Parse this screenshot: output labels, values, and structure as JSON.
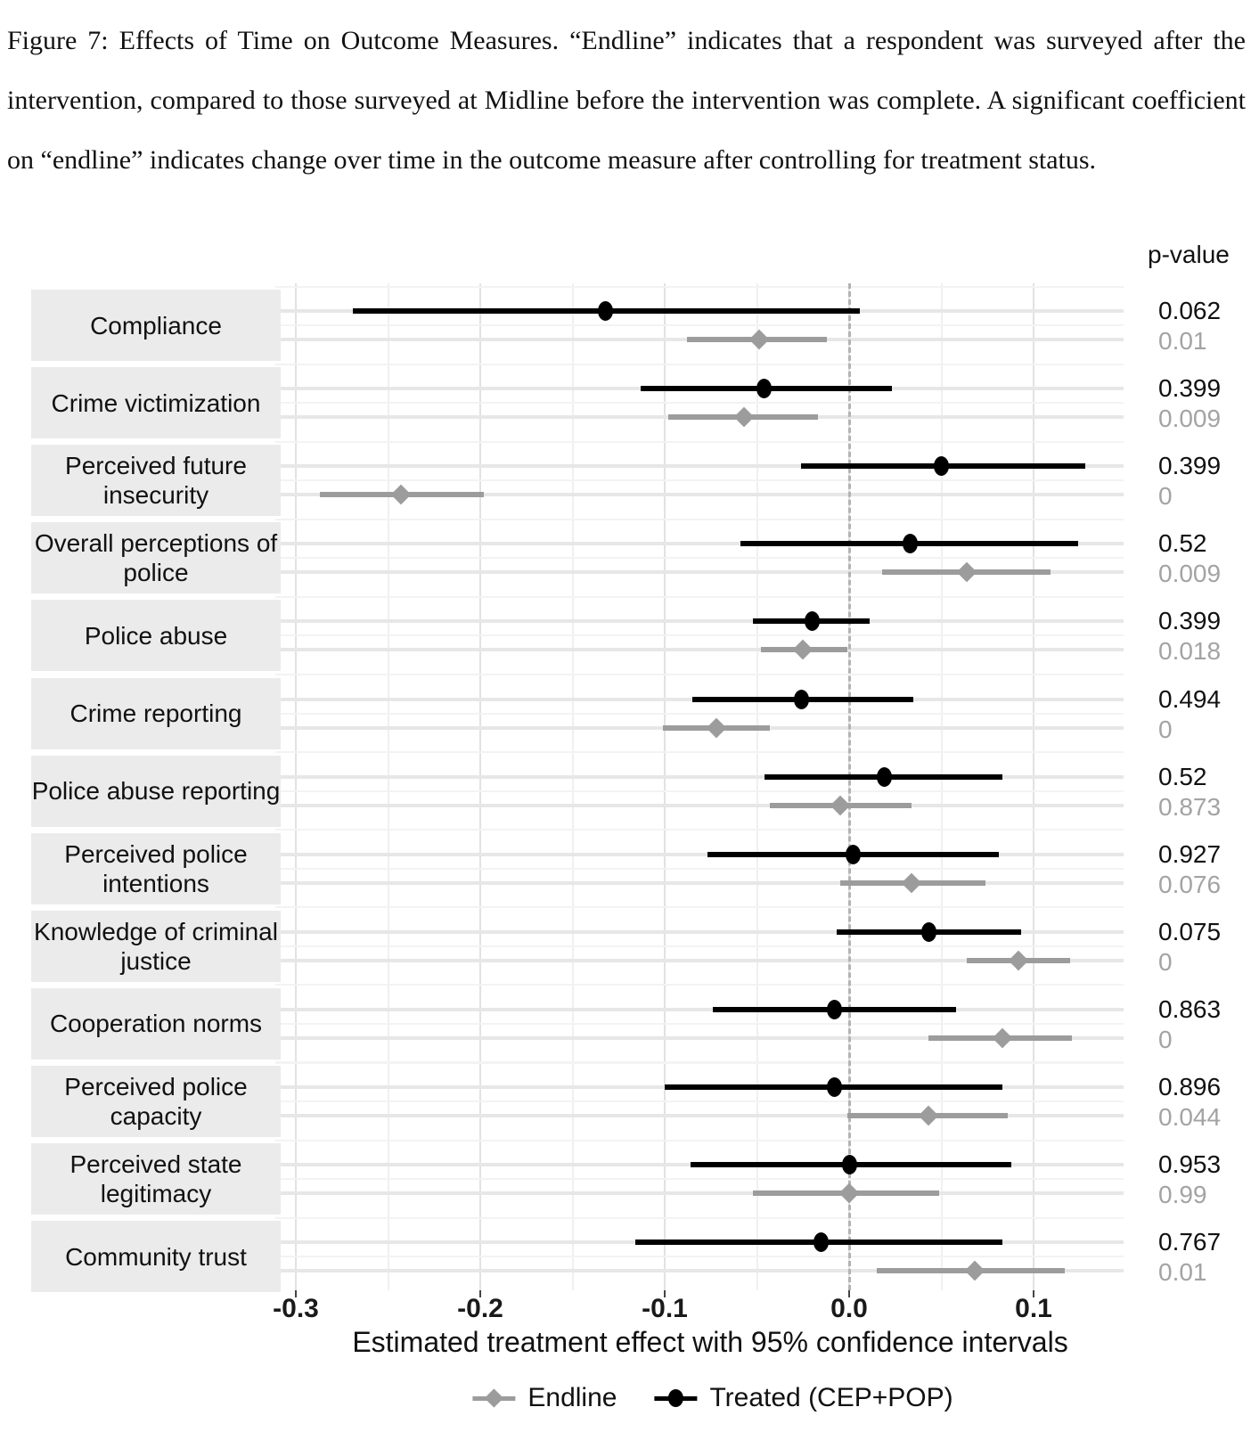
{
  "caption": "Figure 7: Effects of Time on Outcome Measures. “Endline” indicates that a respondent was surveyed after the intervention, compared to those surveyed at Midline before the intervention was complete. A significant coefficient on “endline” indicates change over time in the outcome measure after controlling for treatment status.",
  "pvalue_header": "p-value",
  "colors": {
    "treated": "#000000",
    "endline": "#9c9c9c",
    "pvalue_endline_text": "#a3a3a3",
    "label_box_bg": "#ebebeb",
    "grid_major": "#e2e2e2",
    "grid_minor": "#f0f0f0",
    "zero_line": "#b3b3b3"
  },
  "chart_data": {
    "type": "forest",
    "title": "",
    "xlabel": "Estimated treatment effect with 95% confidence intervals",
    "x_ticks": [
      -0.3,
      -0.2,
      -0.1,
      0.0,
      0.1
    ],
    "x_tick_labels": [
      "-0.3",
      "-0.2",
      "-0.1",
      "0.0",
      "0.1"
    ],
    "x_minor_ticks": [
      -0.25,
      -0.15,
      -0.05,
      0.05
    ],
    "xlim": [
      -0.311,
      0.149
    ],
    "zero_reference_line": 0,
    "grid": true,
    "legend_position": "bottom",
    "legend": [
      {
        "label": "Endline",
        "marker": "diamond",
        "color": "#9c9c9c"
      },
      {
        "label": "Treated (CEP+POP)",
        "marker": "circle",
        "color": "#000000"
      }
    ],
    "rows": [
      {
        "outcome": "Compliance",
        "label_lines": [
          "Compliance"
        ],
        "treated": {
          "est": -0.132,
          "lo": -0.269,
          "hi": 0.006,
          "p": "0.062"
        },
        "endline": {
          "est": -0.049,
          "lo": -0.088,
          "hi": -0.012,
          "p": "0.01"
        }
      },
      {
        "outcome": "Crime victimization",
        "label_lines": [
          "Crime victimization"
        ],
        "treated": {
          "est": -0.046,
          "lo": -0.113,
          "hi": 0.023,
          "p": "0.399"
        },
        "endline": {
          "est": -0.057,
          "lo": -0.098,
          "hi": -0.017,
          "p": "0.009"
        }
      },
      {
        "outcome": "Perceived future insecurity",
        "label_lines": [
          "Perceived future",
          "insecurity"
        ],
        "treated": {
          "est": 0.05,
          "lo": -0.026,
          "hi": 0.128,
          "p": "0.399"
        },
        "endline": {
          "est": -0.243,
          "lo": -0.287,
          "hi": -0.198,
          "p": "0"
        }
      },
      {
        "outcome": "Overall perceptions of police",
        "label_lines": [
          "Overall perceptions of",
          "police"
        ],
        "treated": {
          "est": 0.033,
          "lo": -0.059,
          "hi": 0.124,
          "p": "0.52"
        },
        "endline": {
          "est": 0.064,
          "lo": 0.018,
          "hi": 0.109,
          "p": "0.009"
        }
      },
      {
        "outcome": "Police abuse",
        "label_lines": [
          "Police abuse"
        ],
        "treated": {
          "est": -0.02,
          "lo": -0.052,
          "hi": 0.011,
          "p": "0.399"
        },
        "endline": {
          "est": -0.025,
          "lo": -0.048,
          "hi": -0.001,
          "p": "0.018"
        }
      },
      {
        "outcome": "Crime reporting",
        "label_lines": [
          "Crime reporting"
        ],
        "treated": {
          "est": -0.026,
          "lo": -0.085,
          "hi": 0.035,
          "p": "0.494"
        },
        "endline": {
          "est": -0.072,
          "lo": -0.101,
          "hi": -0.043,
          "p": "0"
        }
      },
      {
        "outcome": "Police abuse reporting",
        "label_lines": [
          "Police abuse reporting"
        ],
        "treated": {
          "est": 0.019,
          "lo": -0.046,
          "hi": 0.083,
          "p": "0.52"
        },
        "endline": {
          "est": -0.005,
          "lo": -0.043,
          "hi": 0.034,
          "p": "0.873"
        }
      },
      {
        "outcome": "Perceived police intentions",
        "label_lines": [
          "Perceived police",
          "intentions"
        ],
        "treated": {
          "est": 0.002,
          "lo": -0.077,
          "hi": 0.081,
          "p": "0.927"
        },
        "endline": {
          "est": 0.034,
          "lo": -0.005,
          "hi": 0.074,
          "p": "0.076"
        }
      },
      {
        "outcome": "Knowledge of criminal justice",
        "label_lines": [
          "Knowledge of criminal",
          "justice"
        ],
        "treated": {
          "est": 0.043,
          "lo": -0.007,
          "hi": 0.093,
          "p": "0.075"
        },
        "endline": {
          "est": 0.092,
          "lo": 0.064,
          "hi": 0.12,
          "p": "0"
        }
      },
      {
        "outcome": "Cooperation norms",
        "label_lines": [
          "Cooperation norms"
        ],
        "treated": {
          "est": -0.008,
          "lo": -0.074,
          "hi": 0.058,
          "p": "0.863"
        },
        "endline": {
          "est": 0.083,
          "lo": 0.043,
          "hi": 0.121,
          "p": "0"
        }
      },
      {
        "outcome": "Perceived police capacity",
        "label_lines": [
          "Perceived police",
          "capacity"
        ],
        "treated": {
          "est": -0.008,
          "lo": -0.1,
          "hi": 0.083,
          "p": "0.896"
        },
        "endline": {
          "est": 0.043,
          "lo": -0.001,
          "hi": 0.086,
          "p": "0.044"
        }
      },
      {
        "outcome": "Perceived state legitimacy",
        "label_lines": [
          "Perceived state",
          "legitimacy"
        ],
        "treated": {
          "est": 0.0,
          "lo": -0.086,
          "hi": 0.088,
          "p": "0.953"
        },
        "endline": {
          "est": 0.0,
          "lo": -0.052,
          "hi": 0.049,
          "p": "0.99"
        }
      },
      {
        "outcome": "Community trust",
        "label_lines": [
          "Community trust"
        ],
        "treated": {
          "est": -0.015,
          "lo": -0.116,
          "hi": 0.083,
          "p": "0.767"
        },
        "endline": {
          "est": 0.068,
          "lo": 0.015,
          "hi": 0.117,
          "p": "0.01"
        }
      }
    ]
  }
}
